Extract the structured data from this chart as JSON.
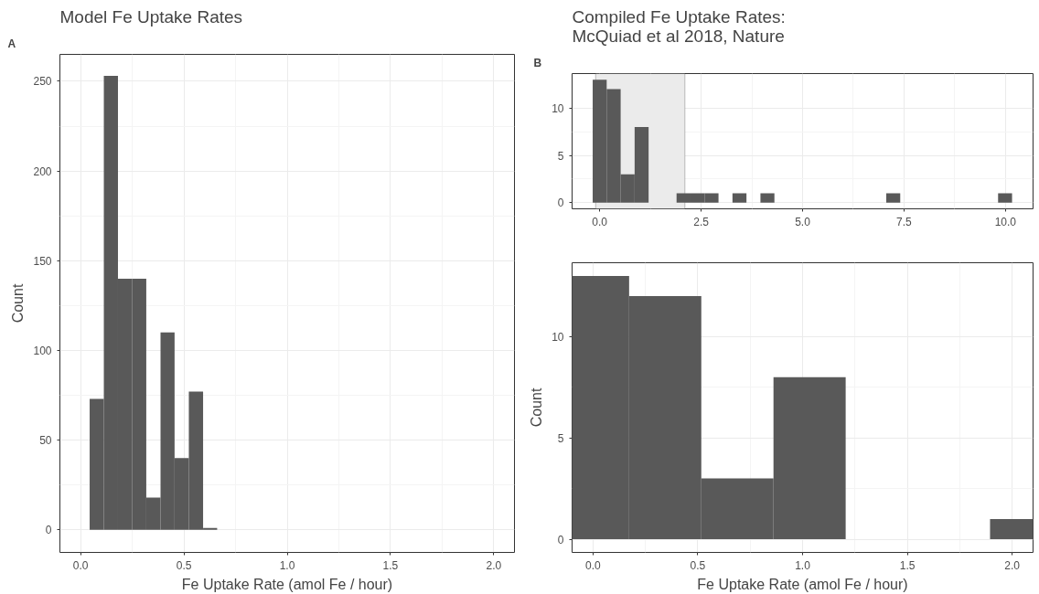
{
  "chart_data": [
    {
      "type": "histogram",
      "title": "Model Fe Uptake Rates",
      "xlabel": "Fe Uptake Rate (amol Fe / hour)",
      "ylabel": "Count",
      "annotations": [
        "A"
      ],
      "bins": [
        0.044,
        0.1126,
        0.181,
        0.25,
        0.318,
        0.387,
        0.455,
        0.524,
        0.593,
        0.661
      ],
      "values": [
        73,
        253,
        140,
        140,
        18,
        110,
        40,
        77,
        1
      ],
      "color": "#595959",
      "xlim": [
        -0.1,
        2.1
      ],
      "ylim": [
        -12.6,
        265
      ],
      "xticks": [
        {
          "value": 0,
          "label": "0.0"
        },
        {
          "value": 0.5,
          "label": "0.5"
        },
        {
          "value": 1,
          "label": "1.0"
        },
        {
          "value": 1.5,
          "label": "1.5"
        },
        {
          "value": 2,
          "label": "2.0"
        }
      ],
      "yticks": [
        0,
        50,
        100,
        150,
        200,
        250
      ],
      "grid": true
    },
    {
      "type": "histogram",
      "title": "Compiled Fe Uptake Rates:\nMcQuiad et al 2018, Nature",
      "annotations": [
        "B"
      ],
      "bins": [
        -0.1723,
        0.1722,
        0.5167,
        0.8612,
        1.2057,
        1.5502,
        1.8947,
        2.2392,
        2.5837,
        2.9282,
        3.2727,
        3.6172,
        3.9617,
        4.3062,
        4.6507,
        4.9952,
        5.3397,
        5.6842,
        6.0287,
        6.3732,
        6.7177,
        7.0622,
        7.4067,
        7.7512,
        8.0957,
        8.4402,
        8.7847,
        9.1292,
        9.4737,
        9.8182,
        10.1627
      ],
      "values": [
        13,
        12,
        3,
        8,
        0,
        0,
        1,
        1,
        1,
        0,
        1,
        0,
        1,
        0,
        0,
        0,
        0,
        0,
        0,
        0,
        0,
        1,
        0,
        0,
        0,
        0,
        0,
        0,
        0,
        1
      ],
      "color": "#595959",
      "xlim": [
        -0.68,
        10.68
      ],
      "ylim": [
        -0.65,
        13.65
      ],
      "xticks": [
        {
          "value": 0,
          "label": "0.0"
        },
        {
          "value": 2.5,
          "label": "2.5"
        },
        {
          "value": 5,
          "label": "5.0"
        },
        {
          "value": 7.5,
          "label": "7.5"
        },
        {
          "value": 10,
          "label": "10.0"
        }
      ],
      "yticks": [
        0,
        5,
        10
      ],
      "grid": true,
      "bands": [
        {
          "axis": "x",
          "from": -0.1,
          "to": 2.1,
          "color": "#ebebeb"
        }
      ]
    },
    {
      "type": "histogram",
      "xlabel": "Fe Uptake Rate (amol Fe / hour)",
      "ylabel": "Count",
      "bins": [
        -0.1723,
        0.1722,
        0.5167,
        0.8612,
        1.2057,
        1.5502,
        1.8947,
        2.2392
      ],
      "values": [
        13,
        12,
        3,
        8,
        0,
        0,
        1
      ],
      "color": "#595959",
      "xlim": [
        -0.1,
        2.1
      ],
      "ylim": [
        -0.65,
        13.65
      ],
      "xticks": [
        {
          "value": 0,
          "label": "0.0"
        },
        {
          "value": 0.5,
          "label": "0.5"
        },
        {
          "value": 1,
          "label": "1.0"
        },
        {
          "value": 1.5,
          "label": "1.5"
        },
        {
          "value": 2,
          "label": "2.0"
        }
      ],
      "yticks": [
        0,
        5,
        10
      ],
      "grid": true
    }
  ]
}
